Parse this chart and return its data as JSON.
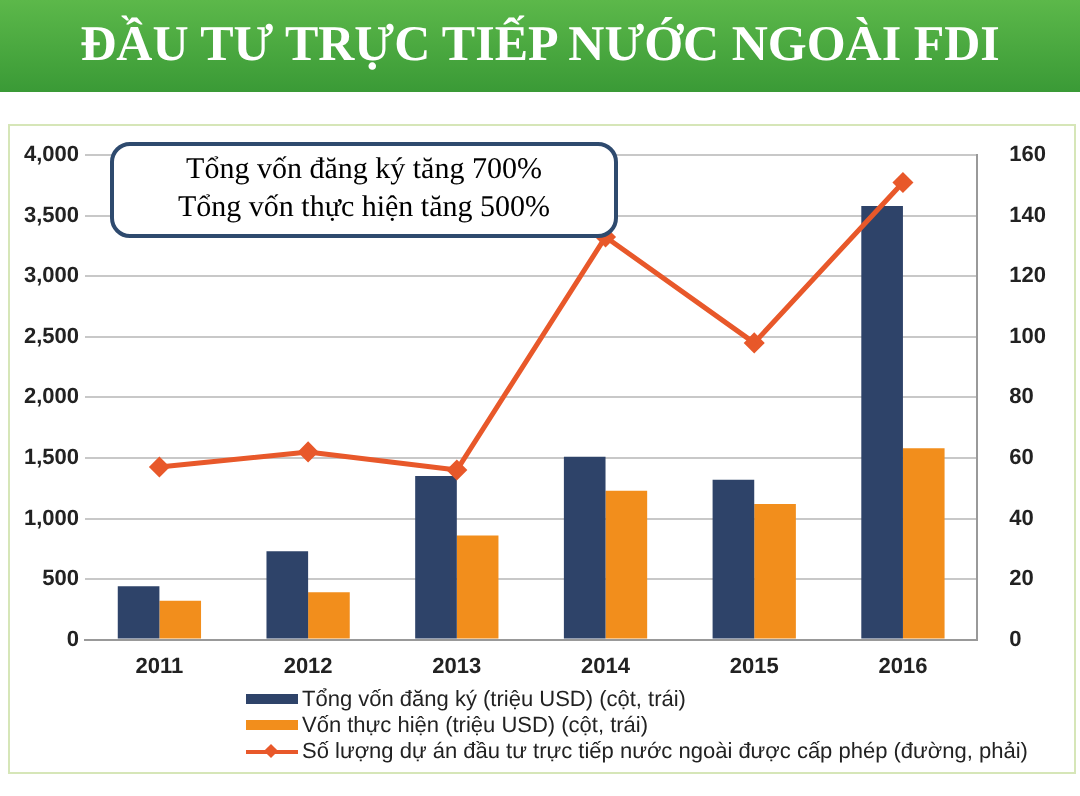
{
  "chart_data": {
    "type": "bar",
    "title": "ĐẦU TƯ TRỰC TIẾP NƯỚC NGOÀI FDI",
    "annotations": [
      "Tổng vốn đăng ký tăng 700%",
      "Tổng vốn thực hiện tăng 500%"
    ],
    "categories": [
      "2011",
      "2012",
      "2013",
      "2014",
      "2015",
      "2016"
    ],
    "series": [
      {
        "name": "Tổng vốn đăng ký  (triệu USD) (cột, trái)",
        "color": "#2e4369",
        "values": [
          440,
          730,
          1350,
          1510,
          1320,
          3580
        ]
      },
      {
        "name": "Vốn thực hiện (triệu USD) (cột, trái)",
        "color": "#f28e1c",
        "values": [
          320,
          390,
          860,
          1230,
          1120,
          1580
        ]
      },
      {
        "name": "Số lượng dự án đầu tư trực tiếp nước ngoài  được cấp phép (đường, phải)",
        "type": "line",
        "axis": "y2",
        "color": "#e8582a",
        "values": [
          57,
          62,
          56,
          133,
          98,
          151
        ]
      }
    ],
    "ylim": [
      0,
      4000
    ],
    "yticks": [
      0,
      500,
      {
        "value": 1000,
        "label": "1,000"
      },
      {
        "value": 1500,
        "label": "1,500"
      },
      {
        "value": 2000,
        "label": "2,000"
      },
      {
        "value": 2500,
        "label": "2,500"
      },
      {
        "value": 3000,
        "label": "3,000"
      },
      {
        "value": 3500,
        "label": "3,500"
      },
      {
        "value": 4000,
        "label": "4,000"
      }
    ],
    "y2lim": [
      0,
      160
    ],
    "y2ticks": [
      0,
      20,
      40,
      60,
      80,
      100,
      120,
      140,
      160
    ],
    "grid": "y",
    "legend": "bottom",
    "marker": "diamond",
    "line_style": "solid"
  }
}
